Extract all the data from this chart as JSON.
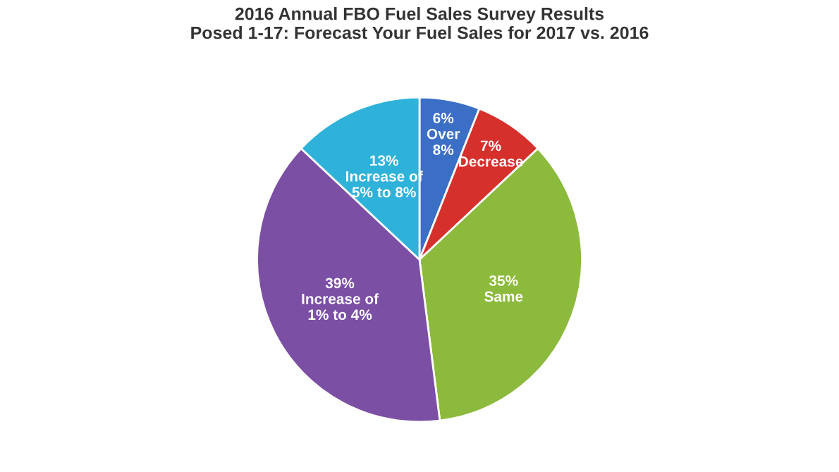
{
  "chart_data": {
    "type": "pie",
    "title": "2016 Annual FBO Fuel Sales Survey Results\nPosed 1-17: Forecast Your Fuel Sales for 2017 vs. 2016",
    "categories": [
      "Over\n8%",
      "Decrease",
      "Same",
      "Increase of\n1% to 4%",
      "Increase of\n5% to 8%"
    ],
    "values": [
      6,
      7,
      35,
      39,
      13
    ],
    "colors": [
      "#3b6fc6",
      "#d6302c",
      "#8cba3c",
      "#7b4fa4",
      "#2eb2da"
    ],
    "value_labels": [
      "6%",
      "7%",
      "35%",
      "39%",
      "13%"
    ],
    "legend": false
  }
}
